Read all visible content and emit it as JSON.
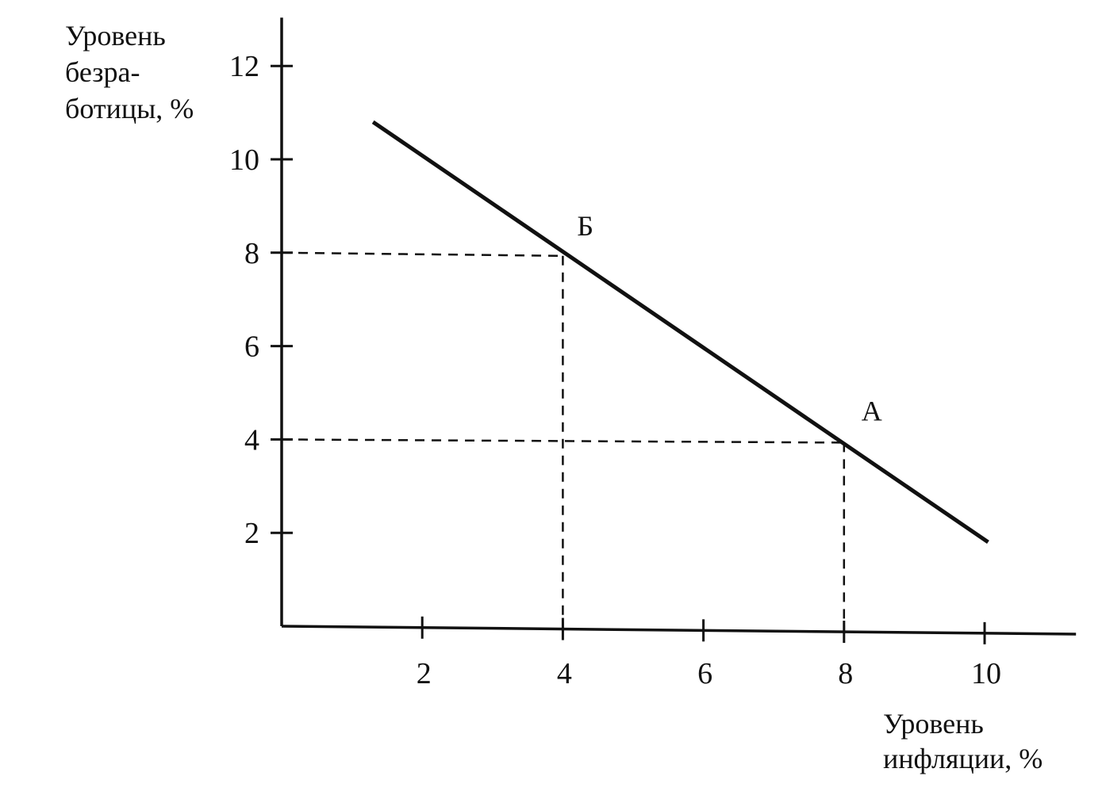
{
  "chart_data": {
    "type": "line",
    "title": "",
    "ylabel_lines": [
      "Уровень",
      "безра-",
      "ботицы, %"
    ],
    "xlabel_lines": [
      "Уровень",
      "инфляции, %"
    ],
    "x_ticks": [
      "2",
      "4",
      "6",
      "8",
      "10"
    ],
    "y_ticks": [
      "2",
      "4",
      "6",
      "8",
      "10",
      "12"
    ],
    "xlim": [
      0,
      11.3
    ],
    "ylim": [
      0,
      13
    ],
    "grid": false,
    "series": [
      {
        "x": [
          1.3,
          10.05
        ],
        "y": [
          10.8,
          1.8
        ]
      }
    ],
    "points": [
      {
        "label": "Б",
        "x": 4,
        "y": 8
      },
      {
        "label": "А",
        "x": 8,
        "y": 4
      }
    ],
    "colors": {
      "ink": "#111111",
      "background": "#ffffff"
    }
  }
}
